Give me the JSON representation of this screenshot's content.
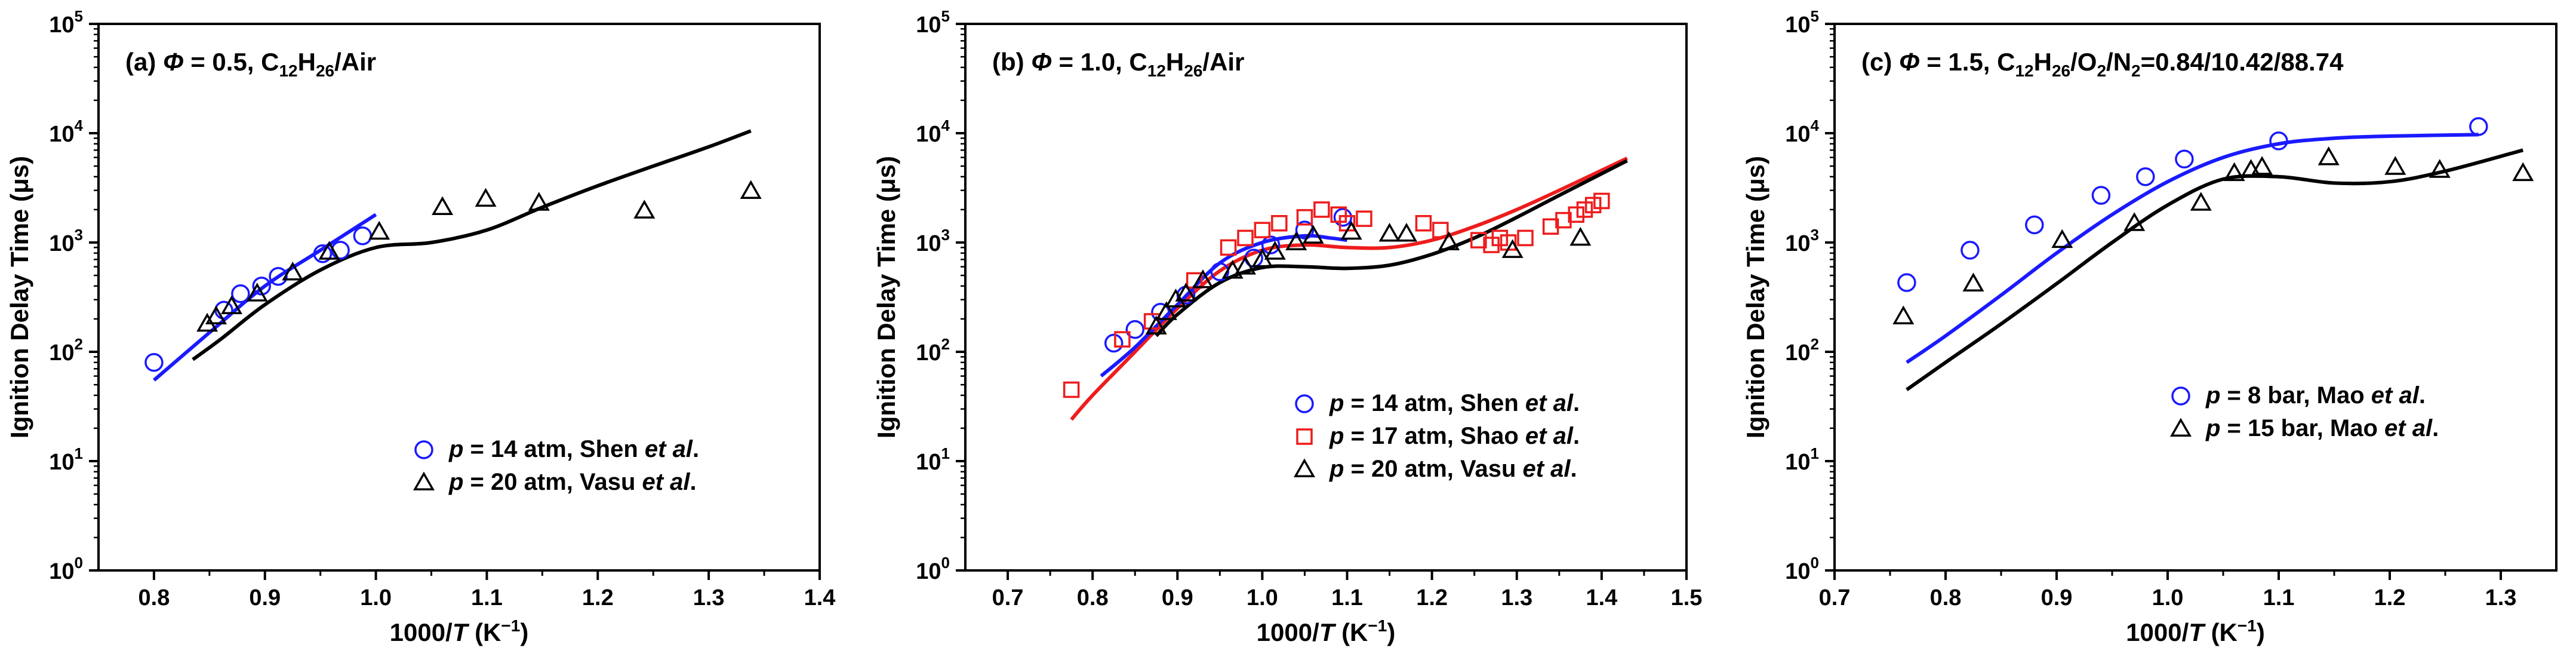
{
  "colors": {
    "blue": "#1a1aff",
    "red": "#ee1c1c",
    "black": "#000000"
  },
  "chart_data": [
    {
      "type": "scatter",
      "title": {
        "tag": "(a)",
        "phi_symbol": "Φ",
        "rest": " = 0.5, C",
        "sub1": "12",
        "mid": "H",
        "sub2": "26",
        "tail": "/Air"
      },
      "xlabel": {
        "main": "1000/",
        "var": "T",
        "unit": " (K",
        "exp": "−1",
        "close": ")"
      },
      "ylabel": "Ignition Delay Time (μs)",
      "xlim": [
        0.75,
        1.4
      ],
      "ylim_log10": [
        0,
        5
      ],
      "xticks": [
        0.8,
        0.9,
        1.0,
        1.1,
        1.2,
        1.3,
        1.4
      ],
      "xtick_labels": [
        "0.8",
        "0.9",
        "1.0",
        "1.1",
        "1.2",
        "1.3",
        "1.4"
      ],
      "ytick_exps": [
        0,
        1,
        2,
        3,
        4,
        5
      ],
      "legend": [
        {
          "p": "p",
          "label": " = 14 atm, Shen ",
          "etal": "et al",
          "end": ".",
          "marker": "circle",
          "color": "blue"
        },
        {
          "p": "p",
          "label": " = 20 atm, Vasu ",
          "etal": "et al",
          "end": ".",
          "marker": "triangle",
          "color": "black"
        }
      ],
      "series": [
        {
          "name": "p = 14 atm, Shen et al.",
          "marker": "circle",
          "color": "blue",
          "x": [
            0.8,
            0.863,
            0.878,
            0.897,
            0.912,
            0.952,
            0.968,
            0.988
          ],
          "y": [
            80,
            240,
            340,
            400,
            490,
            790,
            850,
            1150
          ]
        },
        {
          "name": "p = 20 atm, Vasu et al.",
          "marker": "triangle",
          "color": "black",
          "x": [
            0.848,
            0.856,
            0.87,
            0.893,
            0.925,
            0.958,
            1.003,
            1.06,
            1.099,
            1.147,
            1.242,
            1.338
          ],
          "y": [
            180,
            210,
            260,
            340,
            530,
            820,
            1250,
            2100,
            2500,
            2300,
            1950,
            2950
          ]
        }
      ],
      "lines": [
        {
          "color": "blue",
          "x": [
            0.8,
            0.85,
            0.9,
            0.95,
            1.0
          ],
          "y": [
            55,
            150,
            400,
            850,
            1800
          ]
        },
        {
          "color": "black",
          "x": [
            0.835,
            0.86,
            0.9,
            0.95,
            1.0,
            1.05,
            1.1,
            1.15,
            1.2,
            1.25,
            1.3,
            1.338
          ],
          "y": [
            85,
            130,
            270,
            560,
            900,
            1000,
            1300,
            2100,
            3300,
            5000,
            7500,
            10500
          ]
        }
      ]
    },
    {
      "type": "scatter",
      "title": {
        "tag": "(b)",
        "phi_symbol": "Φ",
        "rest": " = 1.0, C",
        "sub1": "12",
        "mid": "H",
        "sub2": "26",
        "tail": "/Air"
      },
      "xlabel": {
        "main": "1000/",
        "var": "T",
        "unit": " (K",
        "exp": "−1",
        "close": ")"
      },
      "ylabel": "Ignition Delay Time (μs)",
      "xlim": [
        0.65,
        1.5
      ],
      "ylim_log10": [
        0,
        5
      ],
      "xticks": [
        0.7,
        0.8,
        0.9,
        1.0,
        1.1,
        1.2,
        1.3,
        1.4,
        1.5
      ],
      "xtick_labels": [
        "0.7",
        "0.8",
        "0.9",
        "1.0",
        "1.1",
        "1.2",
        "1.3",
        "1.4",
        "1.5"
      ],
      "ytick_exps": [
        0,
        1,
        2,
        3,
        4,
        5
      ],
      "legend": [
        {
          "p": "p",
          "label": " = 14 atm, Shen ",
          "etal": "et al",
          "end": ".",
          "marker": "circle",
          "color": "blue"
        },
        {
          "p": "p",
          "label": " = 17 atm, Shao ",
          "etal": "et al",
          "end": ".",
          "marker": "square",
          "color": "red"
        },
        {
          "p": "p",
          "label": " = 20 atm, Vasu ",
          "etal": "et al",
          "end": ".",
          "marker": "triangle",
          "color": "black"
        }
      ],
      "series": [
        {
          "name": "p = 14 atm, Shen et al.",
          "marker": "circle",
          "color": "blue",
          "x": [
            0.825,
            0.85,
            0.88,
            0.91,
            0.95,
            0.99,
            1.01,
            1.05,
            1.095
          ],
          "y": [
            120,
            160,
            230,
            330,
            540,
            720,
            950,
            1300,
            1700
          ]
        },
        {
          "name": "p = 17 atm, Shao et al.",
          "marker": "square",
          "color": "red",
          "x": [
            0.775,
            0.835,
            0.87,
            0.92,
            0.96,
            0.98,
            1.0,
            1.02,
            1.05,
            1.07,
            1.09,
            1.1,
            1.12,
            1.19,
            1.21,
            1.255,
            1.27,
            1.28,
            1.29,
            1.31,
            1.34,
            1.355,
            1.37,
            1.38,
            1.39,
            1.4
          ],
          "y": [
            45,
            130,
            190,
            450,
            900,
            1100,
            1300,
            1500,
            1700,
            2000,
            1800,
            1500,
            1650,
            1500,
            1300,
            1050,
            950,
            1100,
            1000,
            1100,
            1400,
            1600,
            1800,
            2000,
            2200,
            2400
          ]
        },
        {
          "name": "p = 20 atm, Vasu et al.",
          "marker": "triangle",
          "color": "black",
          "x": [
            0.875,
            0.887,
            0.898,
            0.91,
            0.93,
            0.965,
            0.98,
            1.0,
            1.015,
            1.04,
            1.06,
            1.105,
            1.15,
            1.17,
            1.22,
            1.295,
            1.375
          ],
          "y": [
            170,
            230,
            300,
            340,
            450,
            550,
            600,
            700,
            820,
            1000,
            1150,
            1250,
            1200,
            1200,
            1000,
            850,
            1100
          ]
        }
      ],
      "lines": [
        {
          "color": "red",
          "x": [
            0.775,
            0.8,
            0.85,
            0.9,
            0.95,
            1.0,
            1.05,
            1.1,
            1.15,
            1.2,
            1.25,
            1.3,
            1.35,
            1.43
          ],
          "y": [
            24,
            40,
            100,
            250,
            550,
            850,
            950,
            900,
            900,
            1050,
            1400,
            2000,
            3000,
            5900
          ]
        },
        {
          "color": "blue",
          "x": [
            0.81,
            0.85,
            0.9,
            0.95,
            1.0,
            1.05,
            1.08,
            1.1
          ],
          "y": [
            60,
            110,
            270,
            650,
            1000,
            1150,
            1100,
            1050
          ]
        },
        {
          "color": "black",
          "x": [
            0.875,
            0.9,
            0.95,
            1.0,
            1.05,
            1.1,
            1.15,
            1.2,
            1.25,
            1.3,
            1.35,
            1.43
          ],
          "y": [
            140,
            220,
            430,
            590,
            600,
            580,
            620,
            780,
            1100,
            1700,
            2700,
            5600
          ]
        }
      ]
    },
    {
      "type": "scatter",
      "title": {
        "tag": "(c)",
        "phi_symbol": "Φ",
        "rest": " = 1.5, C",
        "sub1": "12",
        "mid": "H",
        "sub2": "26",
        "tail": "/O",
        "sub3": "2",
        "tail2": "/N",
        "sub4": "2",
        "tail3": "=0.84/10.42/88.74"
      },
      "xlabel": {
        "main": "1000/",
        "var": "T",
        "unit": " (K",
        "exp": "−1",
        "close": ")"
      },
      "ylabel": "Ignition Delay Time (μs)",
      "xlim": [
        0.7,
        1.35
      ],
      "ylim_log10": [
        0,
        5
      ],
      "xticks": [
        0.7,
        0.8,
        0.9,
        1.0,
        1.1,
        1.2,
        1.3
      ],
      "xtick_labels": [
        "0.7",
        "0.8",
        "0.9",
        "1.0",
        "1.1",
        "1.2",
        "1.3"
      ],
      "ytick_exps": [
        0,
        1,
        2,
        3,
        4,
        5
      ],
      "legend": [
        {
          "p": "p",
          "label": " = 8 bar, Mao ",
          "etal": "et al",
          "end": ".",
          "marker": "circle",
          "color": "blue"
        },
        {
          "p": "p",
          "label": " = 15 bar, Mao ",
          "etal": "et al",
          "end": ".",
          "marker": "triangle",
          "color": "black"
        }
      ],
      "series": [
        {
          "name": "p = 8 bar, Mao et al.",
          "marker": "circle",
          "color": "blue",
          "x": [
            0.765,
            0.822,
            0.88,
            0.94,
            0.98,
            1.015,
            1.1,
            1.28
          ],
          "y": [
            430,
            850,
            1450,
            2700,
            4000,
            5800,
            8500,
            11500
          ]
        },
        {
          "name": "p = 15 bar, Mao et al.",
          "marker": "triangle",
          "color": "black",
          "x": [
            0.762,
            0.825,
            0.905,
            0.97,
            1.03,
            1.06,
            1.075,
            1.085,
            1.145,
            1.205,
            1.245,
            1.32
          ],
          "y": [
            210,
            420,
            1050,
            1500,
            2300,
            4300,
            4600,
            4900,
            6000,
            4900,
            4600,
            4300
          ]
        }
      ],
      "lines": [
        {
          "color": "blue",
          "x": [
            0.765,
            0.8,
            0.85,
            0.9,
            0.95,
            1.0,
            1.05,
            1.1,
            1.15,
            1.2,
            1.28
          ],
          "y": [
            80,
            140,
            330,
            800,
            1800,
            3600,
            6000,
            8000,
            9000,
            9400,
            9700
          ]
        },
        {
          "color": "black",
          "x": [
            0.765,
            0.8,
            0.85,
            0.9,
            0.95,
            1.0,
            1.05,
            1.1,
            1.15,
            1.2,
            1.25,
            1.32
          ],
          "y": [
            45,
            80,
            180,
            420,
            1000,
            2200,
            3800,
            4000,
            3500,
            3600,
            4500,
            7000
          ]
        }
      ]
    }
  ]
}
